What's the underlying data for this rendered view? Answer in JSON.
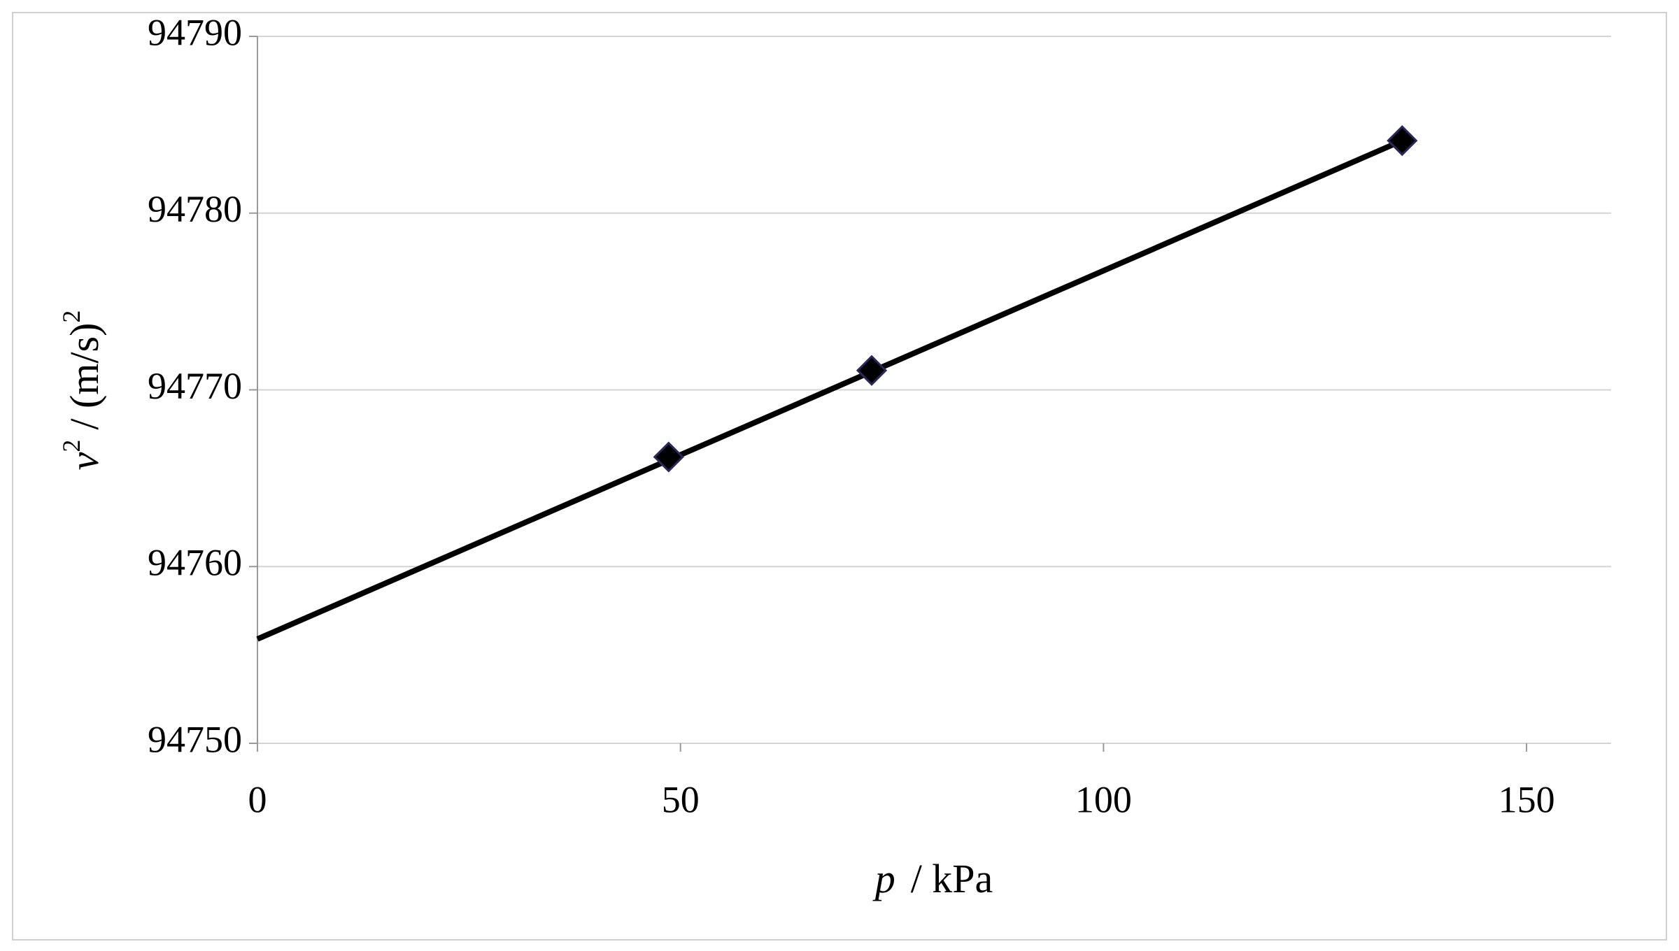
{
  "chart_data": {
    "type": "scatter",
    "x_label": {
      "symbol": "p",
      "unit": "/ kPa"
    },
    "y_label": {
      "symbol": "v",
      "exponent": "2",
      "unit": "/ (m/s)",
      "unit_exponent": "2"
    },
    "series": [
      {
        "type": "scatter",
        "color": "#000000",
        "x": [
          48.6,
          72.6,
          135.3
        ],
        "values": [
          94766.2,
          94771.1,
          94784.1
        ]
      },
      {
        "type": "line",
        "color": "#000000",
        "x": [
          0,
          135.3
        ],
        "values": [
          94755.9,
          94784.1
        ]
      }
    ],
    "xlim": [
      0,
      160
    ],
    "xticks": [
      0,
      50,
      100,
      150
    ],
    "ylim": [
      94750,
      94790
    ],
    "yticks": [
      94750,
      94760,
      94770,
      94780,
      94790
    ],
    "grid": true
  }
}
